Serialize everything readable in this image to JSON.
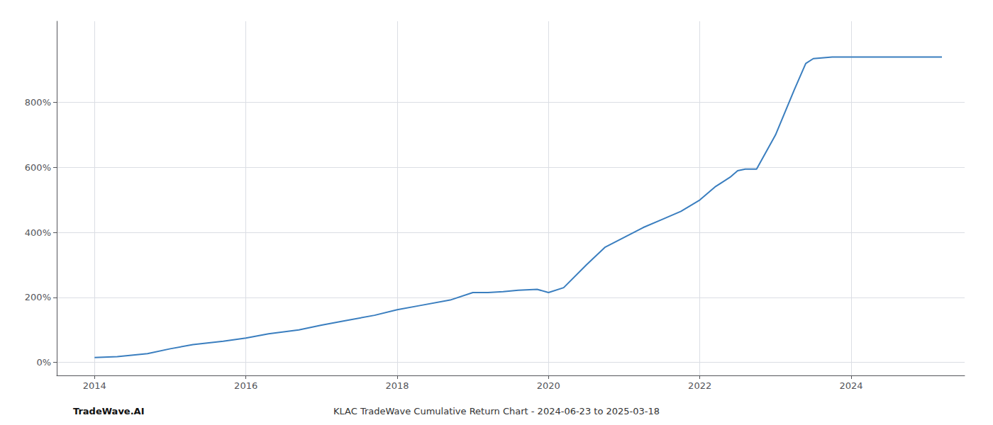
{
  "chart_data": {
    "type": "line",
    "title": "KLAC TradeWave Cumulative Return Chart - 2024-06-23 to 2025-03-18",
    "annotations": [
      "TradeWave.AI"
    ],
    "color": "#3a7ebf",
    "x": [
      2014.0,
      2014.3,
      2014.7,
      2015.0,
      2015.3,
      2015.7,
      2016.0,
      2016.3,
      2016.7,
      2017.0,
      2017.3,
      2017.7,
      2018.0,
      2018.3,
      2018.7,
      2019.0,
      2019.2,
      2019.4,
      2019.6,
      2019.85,
      2020.0,
      2020.2,
      2020.5,
      2020.75,
      2021.0,
      2021.25,
      2021.5,
      2021.75,
      2022.0,
      2022.2,
      2022.4,
      2022.5,
      2022.6,
      2022.75,
      2023.0,
      2023.25,
      2023.4,
      2023.5,
      2023.75,
      2024.0,
      2024.25,
      2024.5,
      2024.75,
      2025.0,
      2025.2
    ],
    "values": [
      15,
      18,
      27,
      42,
      55,
      65,
      75,
      88,
      100,
      115,
      128,
      145,
      162,
      175,
      192,
      215,
      215,
      218,
      222,
      225,
      215,
      230,
      300,
      355,
      385,
      415,
      440,
      465,
      500,
      540,
      570,
      590,
      595,
      595,
      700,
      840,
      920,
      935,
      940,
      940,
      940,
      940,
      940,
      940,
      940
    ],
    "xlim": [
      2013.5,
      2025.5
    ],
    "ylim": [
      -40,
      1050
    ],
    "xticks": [
      2014,
      2016,
      2018,
      2020,
      2022,
      2024
    ],
    "yticks": [
      {
        "value": 0,
        "label": "0%"
      },
      {
        "value": 200,
        "label": "200%"
      },
      {
        "value": 400,
        "label": "400%"
      },
      {
        "value": 600,
        "label": "600%"
      },
      {
        "value": 800,
        "label": "800%"
      }
    ],
    "grid": true
  }
}
